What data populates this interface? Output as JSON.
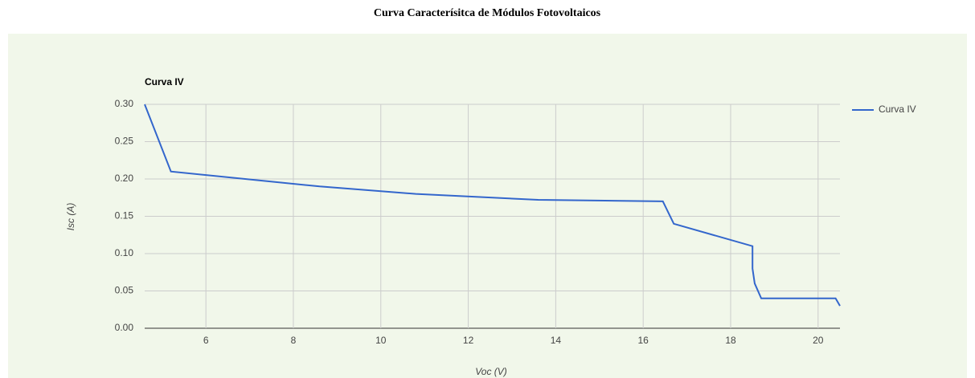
{
  "header": {
    "title": "Curva Caracterísitca de Módulos Fotovoltaicos"
  },
  "chart_data": {
    "type": "line",
    "title": "Curva IV",
    "x_label": "Voc (V)",
    "y_label": "Isc (A)",
    "series": [
      {
        "name": "Curva IV",
        "color": "#3366cc",
        "x": [
          4.6,
          5.2,
          8.6,
          10.8,
          13.6,
          16.45,
          16.7,
          18.5,
          18.5,
          18.55,
          18.7,
          20.4,
          20.5
        ],
        "values": [
          0.3,
          0.21,
          0.19,
          0.18,
          0.172,
          0.17,
          0.14,
          0.11,
          0.08,
          0.06,
          0.04,
          0.04,
          0.03
        ]
      }
    ],
    "xlim": [
      4.6,
      20.5
    ],
    "xticks": [
      6,
      8,
      10,
      12,
      14,
      16,
      18,
      20
    ],
    "ylim": [
      0,
      0.3
    ],
    "yticks": [
      {
        "value": 0,
        "label": "0.00"
      },
      {
        "value": 0.05,
        "label": "0.05"
      },
      {
        "value": 0.1,
        "label": "0.10"
      },
      {
        "value": 0.15,
        "label": "0.15"
      },
      {
        "value": 0.2,
        "label": "0.20"
      },
      {
        "value": 0.25,
        "label": "0.25"
      },
      {
        "value": 0.3,
        "label": "0.30"
      }
    ],
    "grid": true,
    "legend": "right",
    "background": "#f1f7ea"
  }
}
